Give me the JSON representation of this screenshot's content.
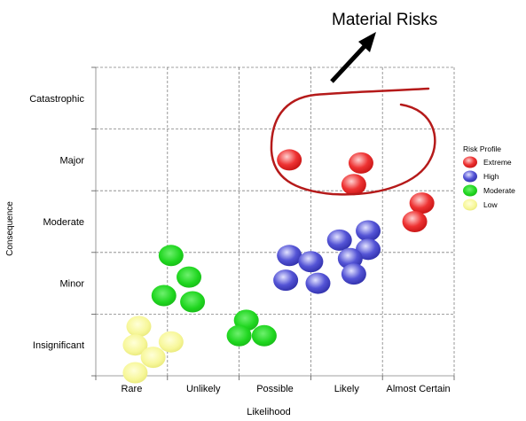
{
  "chart_data": {
    "type": "scatter",
    "xlabel": "Likelihood",
    "ylabel": "Consequence",
    "x_categories": [
      "Rare",
      "Unlikely",
      "Possible",
      "Likely",
      "Almost Certain"
    ],
    "y_categories": [
      "Insignificant",
      "Minor",
      "Moderate",
      "Major",
      "Catastrophic"
    ],
    "xlim": [
      0,
      5
    ],
    "ylim": [
      0,
      5
    ],
    "grid": true,
    "legend_title": "Risk Profile",
    "legend_position": "right",
    "annotation": "Material Risks",
    "series": [
      {
        "name": "Extreme",
        "color": "#e8262a",
        "points": [
          [
            2.7,
            3.5
          ],
          [
            3.7,
            3.45
          ],
          [
            3.6,
            3.1
          ],
          [
            4.55,
            2.8
          ],
          [
            4.45,
            2.5
          ]
        ]
      },
      {
        "name": "High",
        "color": "#4040c8",
        "points": [
          [
            3.8,
            2.35
          ],
          [
            3.4,
            2.2
          ],
          [
            3.8,
            2.05
          ],
          [
            2.7,
            1.95
          ],
          [
            3.0,
            1.85
          ],
          [
            3.55,
            1.9
          ],
          [
            2.65,
            1.55
          ],
          [
            3.1,
            1.5
          ],
          [
            3.6,
            1.65
          ]
        ]
      },
      {
        "name": "Moderate",
        "color": "#22d022",
        "points": [
          [
            1.05,
            1.95
          ],
          [
            1.3,
            1.6
          ],
          [
            0.95,
            1.3
          ],
          [
            1.35,
            1.2
          ]
        ]
      },
      {
        "name": "Moderate",
        "color": "#22d022",
        "points": [
          [
            2.1,
            0.9
          ],
          [
            2.0,
            0.65
          ],
          [
            2.35,
            0.65
          ]
        ]
      },
      {
        "name": "Low",
        "color": "#f4f48a",
        "points": [
          [
            0.6,
            0.8
          ],
          [
            0.55,
            0.5
          ],
          [
            1.05,
            0.55
          ],
          [
            0.8,
            0.3
          ],
          [
            0.55,
            0.05
          ]
        ]
      }
    ]
  }
}
